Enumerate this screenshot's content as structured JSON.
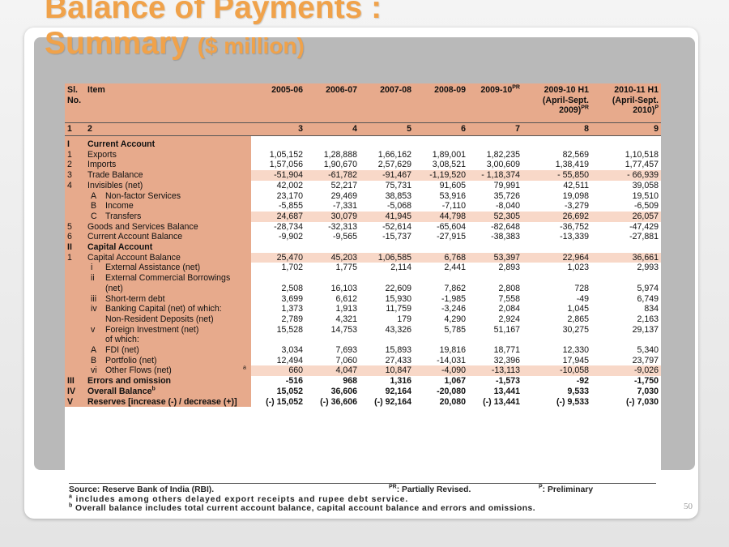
{
  "title": {
    "line1": "Balance of Payments :",
    "line2": "Summary",
    "unit": "($ million)"
  },
  "table": {
    "header": [
      {
        "text": "Sl. No."
      },
      {
        "text": "Item"
      },
      {
        "text": "2005-06"
      },
      {
        "text": "2006-07"
      },
      {
        "text": "2007-08"
      },
      {
        "text": "2008-09"
      },
      {
        "text": "2009-10",
        "sup": "PR"
      },
      {
        "text": "2009-10 H1 (April-Sept. 2009)",
        "sup": "PR"
      },
      {
        "text": "2010-11 H1 (April-Sept. 2010)",
        "sup": "P"
      }
    ],
    "column_numbers": [
      "1",
      "2",
      "3",
      "4",
      "5",
      "6",
      "7",
      "8",
      "9"
    ],
    "rows": [
      {
        "sl": "I",
        "item": "Current Account",
        "values": []
      },
      {
        "sl": "1",
        "item": "Exports",
        "values": [
          "1,05,152",
          "1,28,888",
          "1,66,162",
          "1,89,001",
          "1,82,235",
          "82,569",
          "1,10,518"
        ]
      },
      {
        "sl": "2",
        "item": "Imports",
        "values": [
          "1,57,056",
          "1,90,670",
          "2,57,629",
          "3,08,521",
          "3,00,609",
          "1,38,419",
          "1,77,457"
        ]
      },
      {
        "sl": "3",
        "item": "Trade Balance",
        "values": [
          "-51,904",
          "-61,782",
          "-91,467",
          "-1,19,520",
          "- 1,18,374",
          "- 55,850",
          "- 66,939"
        ]
      },
      {
        "sl": "4",
        "item": "Invisibles (net)",
        "values": [
          "42,002",
          "52,217",
          "75,731",
          "91,605",
          "79,991",
          "42,511",
          "39,058"
        ]
      },
      {
        "sl": "",
        "sub": "A",
        "item": "Non-factor Services",
        "values": [
          "23,170",
          "29,469",
          "38,853",
          "53,916",
          "35,726",
          "19,098",
          "19,510"
        ]
      },
      {
        "sl": "",
        "sub": "B",
        "item": "Income",
        "values": [
          "-5,855",
          "-7,331",
          "-5,068",
          "-7,110",
          "-8,040",
          "-3,279",
          "-6,509"
        ]
      },
      {
        "sl": "",
        "sub": "C",
        "item": "Transfers",
        "values": [
          "24,687",
          "30,079",
          "41,945",
          "44,798",
          "52,305",
          "26,692",
          "26,057"
        ]
      },
      {
        "sl": "5",
        "item": "Goods and Services Balance",
        "values": [
          "-28,734",
          "-32,313",
          "-52,614",
          "-65,604",
          "-82,648",
          "-36,752",
          "-47,429"
        ]
      },
      {
        "sl": "6",
        "item": "Current Account Balance",
        "values": [
          "-9,902",
          "-9,565",
          "-15,737",
          "-27,915",
          "-38,383",
          "-13,339",
          "-27,881"
        ]
      },
      {
        "sl": "II",
        "item": "Capital Account",
        "values": []
      },
      {
        "sl": "1",
        "item": "Capital Account Balance",
        "values": [
          "25,470",
          "45,203",
          "1,06,585",
          "6,768",
          "53,397",
          "22,964",
          "36,661"
        ]
      },
      {
        "sl": "",
        "sub": "i",
        "item": "External Assistance (net)",
        "values": [
          "1,702",
          "1,775",
          "2,114",
          "2,441",
          "2,893",
          "1,023",
          "2,993"
        ]
      },
      {
        "sl": "",
        "sub": "ii",
        "item": "External Commercial Borrowings (net)",
        "values": [
          "2,508",
          "16,103",
          "22,609",
          "7,862",
          "2,808",
          "728",
          "5,974"
        ]
      },
      {
        "sl": "",
        "sub": "iii",
        "item": "Short-term debt",
        "values": [
          "3,699",
          "6,612",
          "15,930",
          "-1,985",
          "7,558",
          "-49",
          "6,749"
        ]
      },
      {
        "sl": "",
        "sub": "iv",
        "item": "Banking Capital (net) of which:",
        "values": [
          "1,373",
          "1,913",
          "11,759",
          "-3,246",
          "2,084",
          "1,045",
          "834"
        ]
      },
      {
        "sl": "",
        "item": "Non-Resident Deposits (net)",
        "values": [
          "2,789",
          "4,321",
          "179",
          "4,290",
          "2,924",
          "2,865",
          "2,163"
        ]
      },
      {
        "sl": "",
        "sub": "v",
        "item": "Foreign Investment (net)",
        "values": [
          "15,528",
          "14,753",
          "43,326",
          "5,785",
          "51,167",
          "30,275",
          "29,137"
        ]
      },
      {
        "sl": "",
        "item": "of which:",
        "values": []
      },
      {
        "sl": "",
        "sub": "A",
        "item": "FDI (net)",
        "values": [
          "3,034",
          "7,693",
          "15,893",
          "19,816",
          "18,771",
          "12,330",
          "5,340"
        ]
      },
      {
        "sl": "",
        "sub": "B",
        "item": "Portfolio (net)",
        "values": [
          "12,494",
          "7,060",
          "27,433",
          "-14,031",
          "32,396",
          "17,945",
          "23,797"
        ]
      },
      {
        "sl": "",
        "sub": "vi",
        "item": "Other Flows (net)",
        "sup": "a",
        "values": [
          "660",
          "4,047",
          "10,847",
          "-4,090",
          "-13,113",
          "-10,058",
          "-9,026"
        ]
      },
      {
        "sl": "III",
        "item": "Errors and omission",
        "values": [
          "-516",
          "968",
          "1,316",
          "1,067",
          "-1,573",
          "-92",
          "-1,750"
        ]
      },
      {
        "sl": "IV",
        "item": "Overall Balance",
        "sup": "b",
        "values": [
          "15,052",
          "36,606",
          "92,164",
          "-20,080",
          "13,441",
          "9,533",
          "7,030"
        ]
      },
      {
        "sl": "V",
        "item": "Reserves [increase (-) / decrease (+)]",
        "values": [
          "(-) 15,052",
          "(-) 36,606",
          "(-) 92,164",
          "20,080",
          "(-) 13,441",
          "(-) 9,533",
          "(-) 7,030"
        ]
      }
    ]
  },
  "footnotes": {
    "source": "Source: Reserve Bank of India (RBI).",
    "pr": {
      "mark": "PR",
      "text": ": Partially Revised."
    },
    "p": {
      "mark": "P",
      "text": ": Preliminary"
    },
    "a": {
      "mark": "a",
      "text": " includes among others delayed export receipts and rupee debt service."
    },
    "b": {
      "mark": "b",
      "text": " Overall balance includes total current account balance, capital account balance and errors and omissions."
    }
  },
  "page_number": "50"
}
